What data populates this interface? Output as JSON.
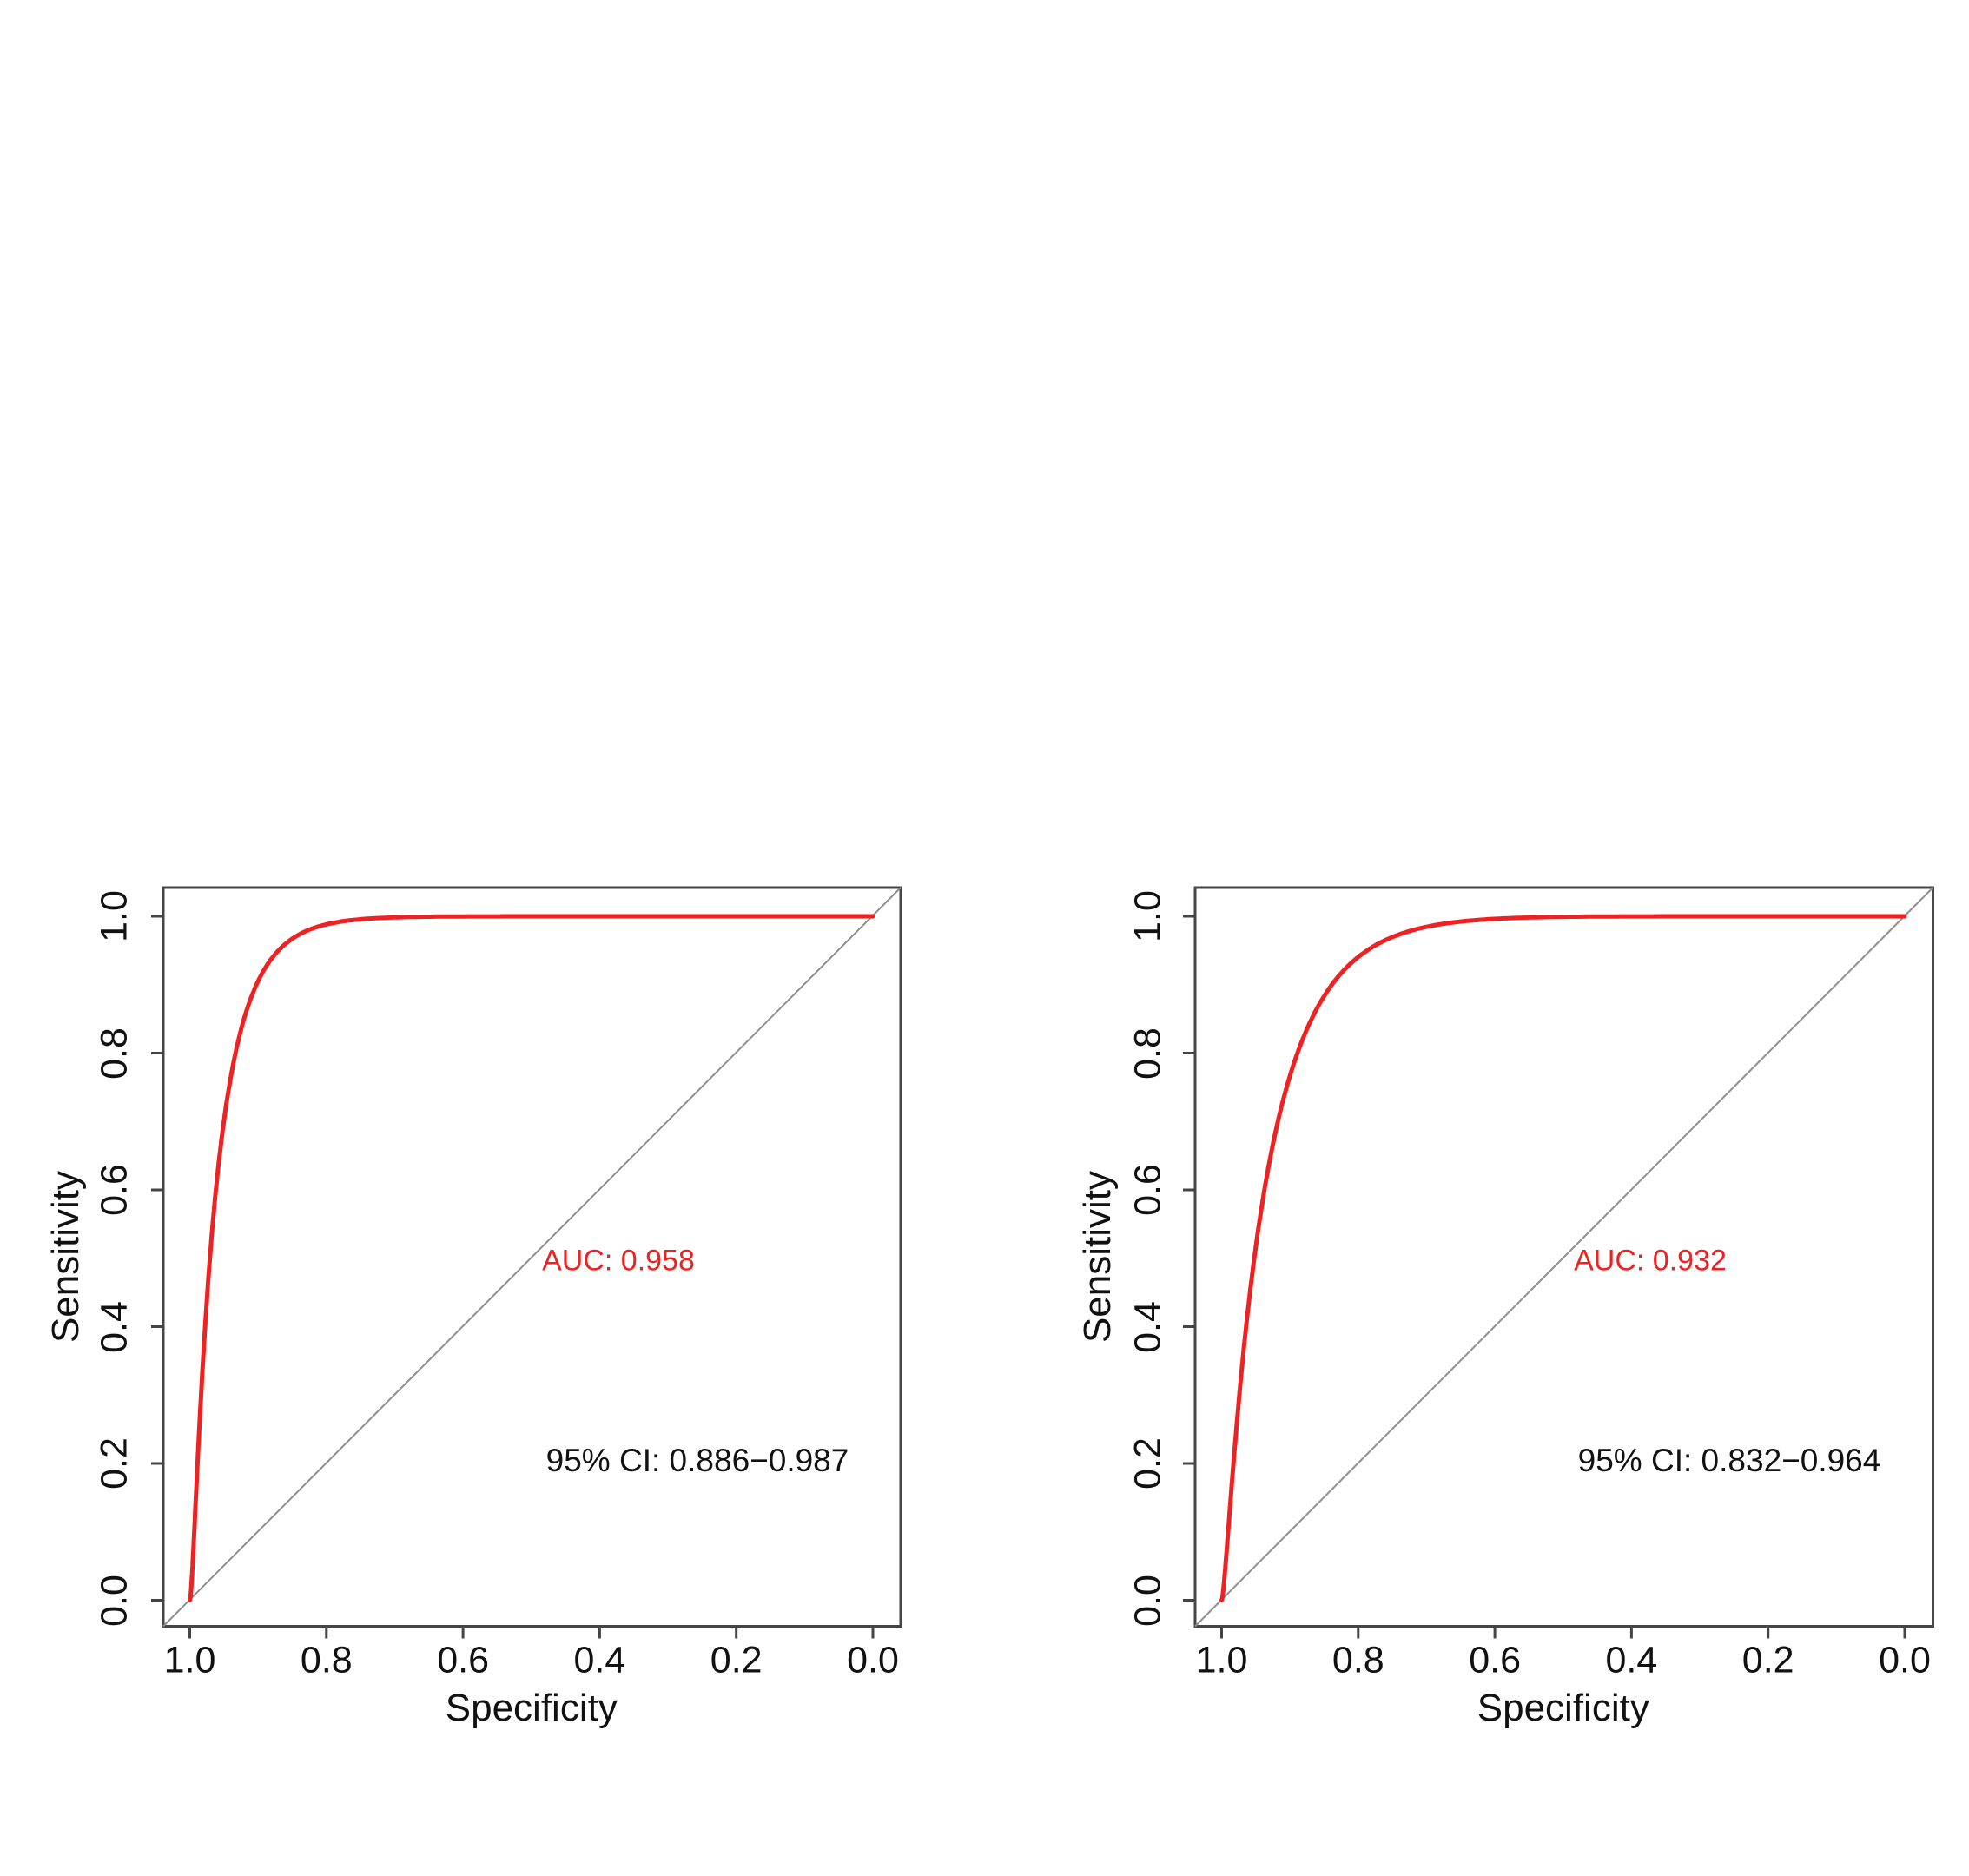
{
  "page": {
    "background": "#ffffff",
    "description": "Two smoothed ROC curve plots side by side"
  },
  "palette": {
    "curve_red": "#ee2222",
    "diagonal_gray": "#8f8f8f",
    "axis_dark": "#454545",
    "text_black": "#111111"
  },
  "chart_data": [
    {
      "type": "line",
      "title": "",
      "xlabel": "Specificity",
      "ylabel": "Sensitivity",
      "x_axis": {
        "ticks": [
          "1.0",
          "0.8",
          "0.6",
          "0.4",
          "0.2",
          "0.0"
        ],
        "range": [
          1.0,
          0.0
        ],
        "reversed": true
      },
      "y_axis": {
        "ticks": [
          "0.0",
          "0.2",
          "0.4",
          "0.6",
          "0.8",
          "1.0"
        ],
        "range": [
          0.0,
          1.0
        ]
      },
      "grid": false,
      "legend": "none",
      "series": [
        {
          "name": "smoothed ROC curve",
          "color": "#ee2222",
          "model": "binormal",
          "binormal_a": 4.08,
          "binormal_b": 2.16,
          "points_spec_sens": [
            [
              1.0,
              0.0
            ],
            [
              0.99,
              0.17
            ],
            [
              0.98,
              0.36
            ],
            [
              0.95,
              0.69
            ],
            [
              0.93,
              0.83
            ],
            [
              0.9,
              0.89
            ],
            [
              0.87,
              0.95
            ],
            [
              0.81,
              0.985
            ],
            [
              0.7,
              0.999
            ],
            [
              0.0,
              1.0
            ]
          ]
        },
        {
          "name": "chance diagonal",
          "color": "#8f8f8f",
          "from_spec_sens": [
            1.0,
            0.0
          ],
          "to_spec_sens": [
            0.0,
            1.0
          ]
        }
      ],
      "annotations": {
        "auc_label": "AUC: 0.958",
        "auc_color": "#ee2222",
        "ci_label": "95% CI: 0.886−0.987",
        "ci_color": "#111111"
      }
    },
    {
      "type": "line",
      "title": "",
      "xlabel": "Specificity",
      "ylabel": "Sensitivity",
      "x_axis": {
        "ticks": [
          "1.0",
          "0.8",
          "0.6",
          "0.4",
          "0.2",
          "0.0"
        ],
        "range": [
          1.0,
          0.0
        ],
        "reversed": true
      },
      "y_axis": {
        "ticks": [
          "0.0",
          "0.2",
          "0.4",
          "0.6",
          "0.8",
          "1.0"
        ],
        "range": [
          0.0,
          1.0
        ]
      },
      "grid": false,
      "legend": "none",
      "series": [
        {
          "name": "smoothed ROC curve",
          "color": "#ee2222",
          "model": "binormal",
          "binormal_a": 3.15,
          "binormal_b": 1.89,
          "points_spec_sens": [
            [
              1.0,
              0.0
            ],
            [
              0.97,
              0.3
            ],
            [
              0.93,
              0.64
            ],
            [
              0.9,
              0.77
            ],
            [
              0.86,
              0.85
            ],
            [
              0.82,
              0.92
            ],
            [
              0.76,
              0.96
            ],
            [
              0.68,
              0.99
            ],
            [
              0.5,
              0.999
            ],
            [
              0.0,
              1.0
            ]
          ]
        },
        {
          "name": "chance diagonal",
          "color": "#8f8f8f",
          "from_spec_sens": [
            1.0,
            0.0
          ],
          "to_spec_sens": [
            0.0,
            1.0
          ]
        }
      ],
      "annotations": {
        "auc_label": "AUC: 0.932",
        "auc_color": "#ee2222",
        "ci_label": "95% CI: 0.832−0.964",
        "ci_color": "#111111"
      }
    }
  ]
}
